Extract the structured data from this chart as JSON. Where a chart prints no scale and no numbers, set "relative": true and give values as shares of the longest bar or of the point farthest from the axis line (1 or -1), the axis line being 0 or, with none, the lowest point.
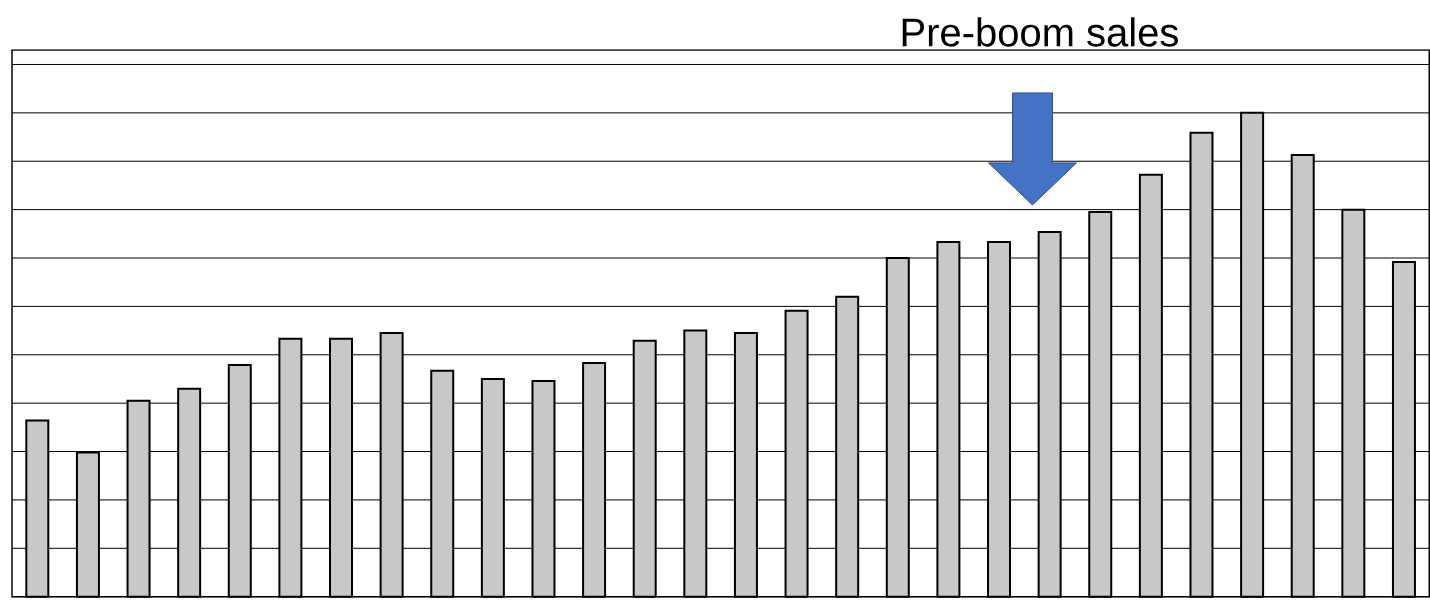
{
  "chart_data": {
    "type": "bar",
    "relative": true,
    "grid": "y",
    "categories": [
      null,
      null,
      null,
      null,
      null,
      null,
      null,
      null,
      null,
      null,
      null,
      null,
      null,
      null,
      null,
      null,
      null,
      null,
      null,
      null,
      null,
      null,
      null,
      null,
      null,
      null,
      null,
      null
    ],
    "values": [
      0.364,
      0.298,
      0.405,
      0.43,
      0.479,
      0.533,
      0.533,
      0.545,
      0.467,
      0.45,
      0.446,
      0.483,
      0.529,
      0.55,
      0.545,
      0.591,
      0.62,
      0.7,
      0.733,
      0.733,
      0.754,
      0.795,
      0.872,
      0.959,
      1,
      0.913,
      0.8,
      0.692
    ],
    "color": "#c8c8c8",
    "annotations": [
      "Pre-boom sales"
    ]
  }
}
